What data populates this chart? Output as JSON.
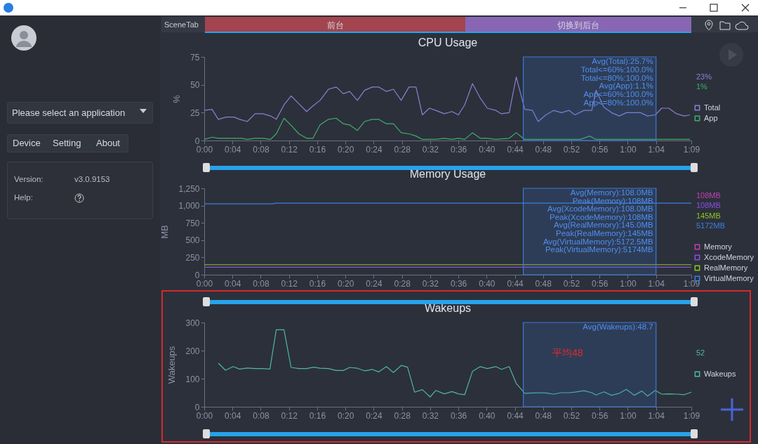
{
  "chart_data": [
    {
      "type": "other",
      "annotations": [
        "Please select an application",
        "Device",
        "Setting",
        "About",
        "Version:",
        "v3.0.9153",
        "Help:",
        "SceneTab",
        "前台",
        "切换到后台"
      ]
    },
    {
      "type": "line",
      "title": "CPU Usage",
      "ylabel": "%",
      "xlim": [
        0,
        69
      ],
      "xticks": [
        {
          "value": 0,
          "label": "0:00"
        },
        {
          "value": 4,
          "label": "0:04"
        },
        {
          "value": 8,
          "label": "0:08"
        },
        {
          "value": 12,
          "label": "0:12"
        },
        {
          "value": 16,
          "label": "0:16"
        },
        {
          "value": 20,
          "label": "0:20"
        },
        {
          "value": 24,
          "label": "0:24"
        },
        {
          "value": 28,
          "label": "0:28"
        },
        {
          "value": 32,
          "label": "0:32"
        },
        {
          "value": 36,
          "label": "0:36"
        },
        {
          "value": 40,
          "label": "0:40"
        },
        {
          "value": 44,
          "label": "0:44"
        },
        {
          "value": 48,
          "label": "0:48"
        },
        {
          "value": 52,
          "label": "0:52"
        },
        {
          "value": 56,
          "label": "0:56"
        },
        {
          "value": 60,
          "label": "1:00"
        },
        {
          "value": 64,
          "label": "1:04"
        },
        {
          "value": 69,
          "label": "1:09"
        }
      ],
      "ylim": [
        0,
        75
      ],
      "yticks": [
        0,
        25,
        50,
        75
      ],
      "legend": "right",
      "bands": [
        {
          "axis": "x",
          "from": 45.2,
          "to": 64,
          "color": "#3a78d8"
        }
      ],
      "annotations": [
        "Avg(Total):25.7%",
        "Total<=60%:100.0%",
        "Total<=80%:100.0%",
        "Avg(App):1.1%",
        "App<=60%:100.0%",
        "App<=80%:100.0%",
        "23%",
        "1%"
      ],
      "series": [
        {
          "name": "Total",
          "color": "#8a80d0",
          "x": [
            0,
            1.1,
            2,
            3.1,
            4.2,
            5,
            6.1,
            7.2,
            8.3,
            9.4,
            10.2,
            11.3,
            12.3,
            13.4,
            14.5,
            15.4,
            16.4,
            17.6,
            18.7,
            19.7,
            20.6,
            21.7,
            22.7,
            23.8,
            24.7,
            25.8,
            26.8,
            27.9,
            29,
            30,
            30.9,
            31.9,
            32.8,
            34,
            35.1,
            36,
            36.9,
            38,
            39.1,
            40.1,
            41.3,
            42.1,
            43.2,
            44.2,
            45.4,
            46.5,
            47.3,
            48.4,
            49.5,
            50.6,
            51.7,
            52.5,
            53.8,
            54.9,
            55.5,
            56.6,
            57.7,
            58.8,
            59.8,
            61.8,
            62.8,
            63.9,
            64.8,
            65.8,
            66.9,
            68,
            68.8
          ],
          "values": [
            27,
            28,
            19,
            21,
            21,
            19,
            17,
            24,
            24,
            22,
            19,
            32,
            40,
            33,
            26,
            31,
            36,
            46,
            48,
            42,
            44,
            36,
            45,
            48,
            48,
            44,
            46,
            36,
            48,
            48,
            23,
            29,
            27,
            24,
            26,
            23,
            32,
            51,
            38,
            29,
            27,
            24,
            25,
            57,
            28,
            27,
            17,
            23,
            27,
            25,
            27,
            23,
            27,
            27,
            45,
            30,
            25,
            22,
            25,
            25,
            22,
            23,
            29,
            29,
            24,
            22,
            23
          ]
        },
        {
          "name": "App",
          "color": "#3fae6a",
          "x": [
            0,
            1.1,
            2,
            4.2,
            5.3,
            6.1,
            7.2,
            8.3,
            9.4,
            10.2,
            11.3,
            12.4,
            13.4,
            14.5,
            15.4,
            16.4,
            17.6,
            18.7,
            19.7,
            20.6,
            21.7,
            22.7,
            23.8,
            24.7,
            25.8,
            26.8,
            27.9,
            29,
            30,
            30.9,
            32.8,
            34,
            35.1,
            36,
            36.9,
            38,
            39.1,
            40.1,
            41.3,
            43.2,
            44.2,
            45.4,
            53.3,
            54.6,
            55.5,
            68.8
          ],
          "values": [
            1,
            3,
            2,
            2,
            2,
            1,
            2,
            2,
            1,
            6,
            20,
            13,
            6,
            2,
            2,
            14,
            19,
            20,
            15,
            14,
            9,
            17,
            19,
            19,
            15,
            15,
            7,
            6,
            4,
            1,
            1,
            2,
            1,
            2,
            1,
            7,
            2,
            2,
            1,
            2,
            7,
            1,
            1,
            4,
            1,
            1
          ]
        }
      ]
    },
    {
      "type": "line",
      "title": "Memory Usage",
      "ylabel": "MB",
      "xlim": [
        0,
        69
      ],
      "xticks": [
        {
          "value": 0,
          "label": "0:00"
        },
        {
          "value": 4,
          "label": "0:04"
        },
        {
          "value": 8,
          "label": "0:08"
        },
        {
          "value": 12,
          "label": "0:12"
        },
        {
          "value": 16,
          "label": "0:16"
        },
        {
          "value": 20,
          "label": "0:20"
        },
        {
          "value": 24,
          "label": "0:24"
        },
        {
          "value": 28,
          "label": "0:28"
        },
        {
          "value": 32,
          "label": "0:32"
        },
        {
          "value": 36,
          "label": "0:36"
        },
        {
          "value": 40,
          "label": "0:40"
        },
        {
          "value": 44,
          "label": "0:44"
        },
        {
          "value": 48,
          "label": "0:48"
        },
        {
          "value": 52,
          "label": "0:52"
        },
        {
          "value": 56,
          "label": "0:56"
        },
        {
          "value": 60,
          "label": "1:00"
        },
        {
          "value": 64,
          "label": "1:04"
        },
        {
          "value": 69,
          "label": "1:09"
        }
      ],
      "ylim": [
        0,
        1250
      ],
      "yticks": [
        0,
        250,
        500,
        750,
        {
          "value": 1000,
          "label": "1,000"
        },
        {
          "value": 1250,
          "label": "1,250"
        }
      ],
      "legend": "right",
      "bands": [
        {
          "axis": "x",
          "from": 45.2,
          "to": 64,
          "color": "#3a78d8"
        }
      ],
      "annotations": [
        "Avg(Memory):108.0MB",
        "Peak(Memory):108MB",
        "Avg(XcodeMemory):108.0MB",
        "Peak(XcodeMemory):108MB",
        "Avg(RealMemory):145.0MB",
        "Peak(RealMemory):145MB",
        "Avg(VirtualMemory):5172.5MB",
        "Peak(VirtualMemory):5174MB",
        "108MB",
        "108MB",
        "145MB",
        "5172MB"
      ],
      "series": [
        {
          "name": "Memory",
          "color": "#c040b0",
          "values": [
            null
          ]
        },
        {
          "name": "XcodeMemory",
          "color": "#8a4fe0",
          "x": [
            0,
            69
          ],
          "values": [
            108,
            108
          ]
        },
        {
          "name": "RealMemory",
          "color": "#8fc31f",
          "x": [
            0,
            69
          ],
          "values": [
            145,
            145
          ]
        },
        {
          "name": "VirtualMemory",
          "color": "#3a80e0",
          "x": [
            0,
            9.6,
            10.2,
            69
          ],
          "values": [
            1025,
            1025,
            1035,
            1035
          ]
        }
      ]
    },
    {
      "type": "line",
      "title": "Wakeups",
      "ylabel": "Wakeups",
      "xlim": [
        0,
        69
      ],
      "xticks": [
        {
          "value": 0,
          "label": "0:00"
        },
        {
          "value": 4,
          "label": "0:04"
        },
        {
          "value": 8,
          "label": "0:08"
        },
        {
          "value": 12,
          "label": "0:12"
        },
        {
          "value": 16,
          "label": "0:16"
        },
        {
          "value": 20,
          "label": "0:20"
        },
        {
          "value": 24,
          "label": "0:24"
        },
        {
          "value": 28,
          "label": "0:28"
        },
        {
          "value": 32,
          "label": "0:32"
        },
        {
          "value": 36,
          "label": "0:36"
        },
        {
          "value": 40,
          "label": "0:40"
        },
        {
          "value": 44,
          "label": "0:44"
        },
        {
          "value": 48,
          "label": "0:48"
        },
        {
          "value": 52,
          "label": "0:52"
        },
        {
          "value": 56,
          "label": "0:56"
        },
        {
          "value": 60,
          "label": "1:00"
        },
        {
          "value": 64,
          "label": "1:04"
        },
        {
          "value": 69,
          "label": "1:09"
        }
      ],
      "ylim": [
        0,
        300
      ],
      "yticks": [
        0,
        100,
        200,
        300
      ],
      "legend": "right",
      "bands": [
        {
          "axis": "x",
          "from": 45.2,
          "to": 64,
          "color": "#3a78d8",
          "label": "平均48"
        }
      ],
      "annotations": [
        "Avg(Wakeups):48.7",
        "52"
      ],
      "series": [
        {
          "name": "Wakeups",
          "color": "#4fb79a",
          "x": [
            2,
            3,
            4.1,
            5,
            6.1,
            7.2,
            8.3,
            9.3,
            10.2,
            11.3,
            12.3,
            13.4,
            14.5,
            15.5,
            16.4,
            17.6,
            18.7,
            19.7,
            20.6,
            21.7,
            22.7,
            23.8,
            24.7,
            25.8,
            26.8,
            27.9,
            28.8,
            29.8,
            30.9,
            32,
            32.8,
            34,
            35.1,
            36,
            36.9,
            38,
            39.1,
            40.1,
            41.3,
            42.1,
            43.2,
            44.2,
            45.4,
            46.5,
            47.3,
            48.4,
            49.5,
            50.6,
            51.7,
            52.5,
            53.8,
            54.9,
            55.5,
            56.6,
            57.7,
            58.8,
            59.8,
            60.9,
            62,
            62.8,
            63.9,
            64.8,
            65.8,
            66.9,
            68,
            69
          ],
          "values": [
            155,
            130,
            143,
            134,
            138,
            136,
            136,
            134,
            274,
            274,
            140,
            136,
            136,
            141,
            137,
            136,
            129,
            129,
            140,
            137,
            128,
            133,
            124,
            143,
            122,
            147,
            141,
            52,
            61,
            35,
            58,
            46,
            54,
            46,
            43,
            126,
            143,
            136,
            143,
            133,
            143,
            83,
            48,
            49,
            50,
            49,
            45,
            50,
            50,
            52,
            57,
            50,
            42,
            53,
            41,
            48,
            62,
            41,
            56,
            38,
            58,
            45,
            46,
            45,
            43,
            52
          ]
        }
      ]
    }
  ]
}
